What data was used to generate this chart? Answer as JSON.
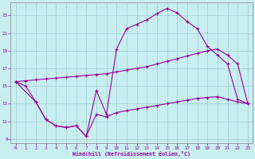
{
  "xlabel": "Windchill (Refroidissement éolien,°C)",
  "background_color": "#c8eef0",
  "grid_color": "#9ecece",
  "line_color": "#990099",
  "xlim": [
    -0.5,
    23.5
  ],
  "ylim": [
    8.5,
    24.5
  ],
  "xticks": [
    0,
    1,
    2,
    3,
    4,
    5,
    6,
    7,
    8,
    9,
    10,
    11,
    12,
    13,
    14,
    15,
    16,
    17,
    18,
    19,
    20,
    21,
    22,
    23
  ],
  "yticks": [
    9,
    11,
    13,
    15,
    17,
    19,
    21,
    23
  ],
  "line1_x": [
    0,
    1,
    2,
    3,
    4,
    5,
    6,
    7,
    8,
    9,
    10,
    11,
    12,
    13,
    14,
    15,
    16,
    17,
    18,
    19,
    20,
    21,
    22,
    23
  ],
  "line1_y": [
    15.5,
    15.0,
    13.2,
    11.2,
    10.5,
    10.3,
    10.5,
    9.3,
    14.5,
    11.8,
    19.2,
    21.5,
    22.0,
    22.5,
    23.2,
    23.8,
    23.3,
    22.3,
    21.5,
    19.5,
    18.5,
    17.5,
    13.5,
    13.0
  ],
  "line2_x": [
    0,
    1,
    2,
    3,
    4,
    5,
    6,
    7,
    8,
    9,
    10,
    11,
    12,
    13,
    14,
    15,
    16,
    17,
    18,
    19,
    20,
    21,
    22,
    23
  ],
  "line2_y": [
    15.5,
    15.6,
    15.7,
    15.8,
    15.9,
    16.0,
    16.1,
    16.2,
    16.3,
    16.4,
    16.6,
    16.8,
    17.0,
    17.2,
    17.5,
    17.8,
    18.1,
    18.4,
    18.7,
    19.0,
    19.2,
    18.5,
    17.5,
    13.0
  ],
  "line3_x": [
    0,
    2,
    3,
    4,
    5,
    6,
    7,
    8,
    9,
    10,
    11,
    12,
    13,
    14,
    15,
    16,
    17,
    18,
    19,
    20,
    21,
    22,
    23
  ],
  "line3_y": [
    15.5,
    13.2,
    11.2,
    10.5,
    10.3,
    10.5,
    9.3,
    11.8,
    11.5,
    12.0,
    12.2,
    12.4,
    12.6,
    12.8,
    13.0,
    13.2,
    13.4,
    13.6,
    13.7,
    13.8,
    13.5,
    13.2,
    13.0
  ]
}
